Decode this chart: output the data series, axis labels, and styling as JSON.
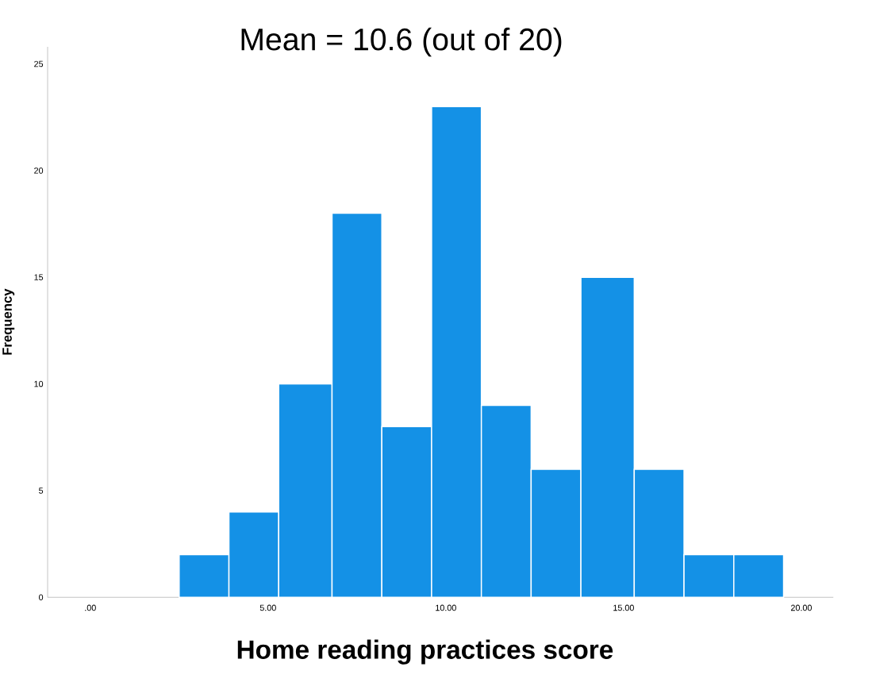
{
  "chart_data": {
    "type": "histogram",
    "title": "Mean = 10.6 (out of 20)",
    "xlabel": "Home reading practices score",
    "ylabel": "Frequency",
    "bins": [
      2.5,
      3.9,
      5.3,
      6.8,
      8.2,
      9.6,
      11.0,
      12.4,
      13.8,
      15.3,
      16.7,
      18.1,
      19.5
    ],
    "values": [
      2,
      4,
      10,
      18,
      8,
      23,
      9,
      6,
      15,
      6,
      2,
      2
    ],
    "color": "#1491e6",
    "xlim": [
      -1.2,
      20.9
    ],
    "ylim": [
      0,
      25.8
    ],
    "xticks": [
      {
        "value": 0,
        "label": ".00"
      },
      {
        "value": 5,
        "label": "5.00"
      },
      {
        "value": 10,
        "label": "10.00"
      },
      {
        "value": 15,
        "label": "15.00"
      },
      {
        "value": 20,
        "label": "20.00"
      }
    ],
    "yticks": [
      0,
      5,
      10,
      15,
      20,
      25
    ]
  }
}
